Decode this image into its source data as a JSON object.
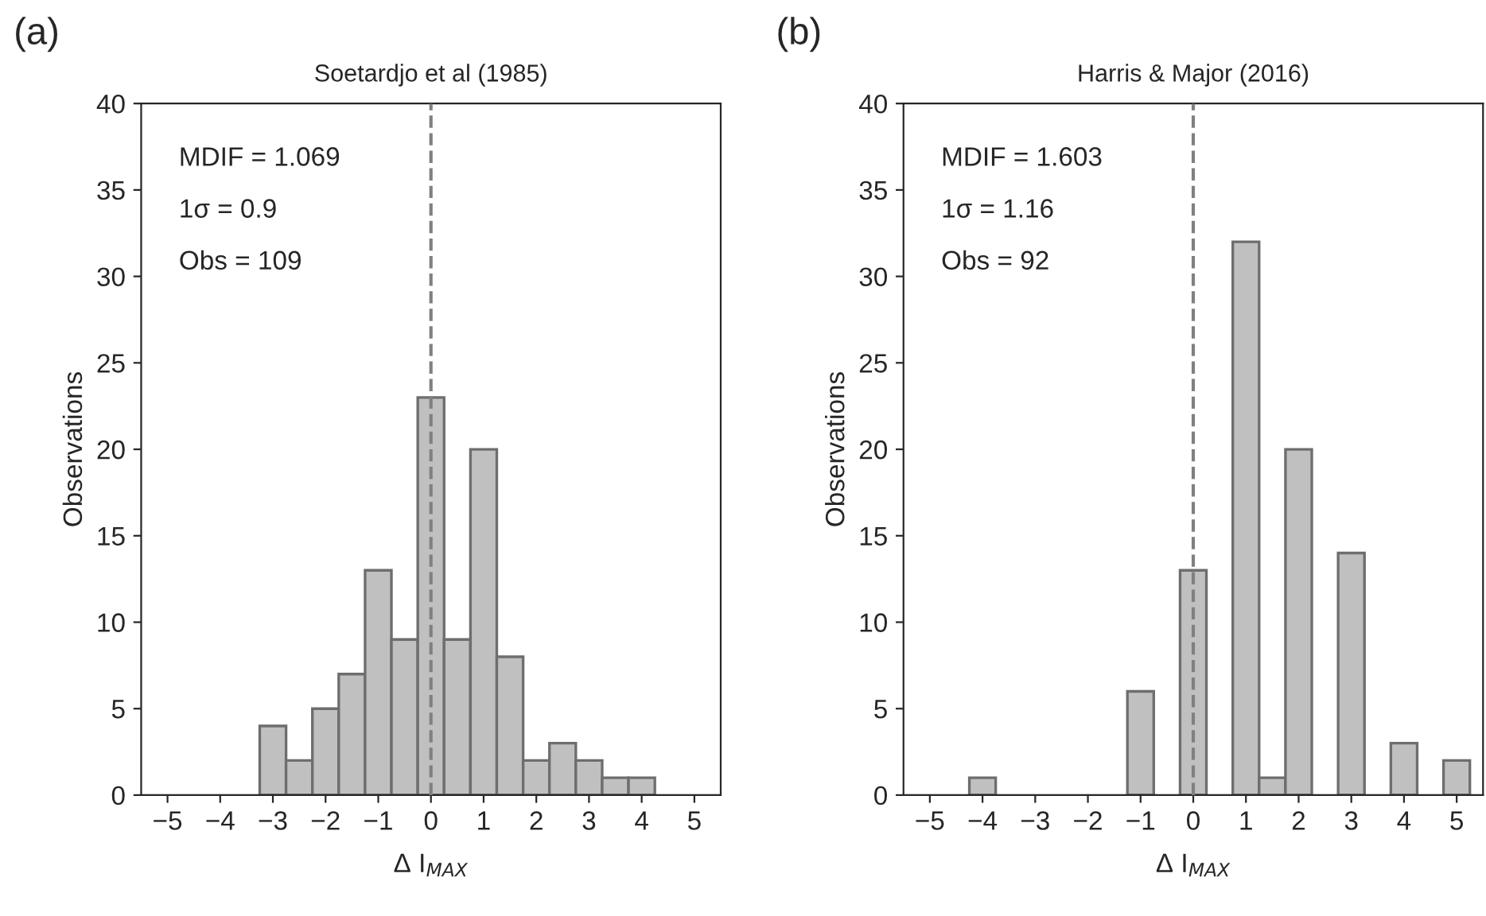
{
  "chart_data": [
    {
      "type": "histogram",
      "title": "Soetardjo et al (1985)",
      "xlabel": "Δ I$_{MAX}$",
      "ylabel": "Observations",
      "bins": [
        -3.25,
        -2.75,
        -2.25,
        -1.75,
        -1.25,
        -0.75,
        -0.25,
        0.25,
        0.75,
        1.25,
        1.75,
        2.25,
        2.75,
        3.25,
        3.75,
        4.25
      ],
      "values": [
        4,
        2,
        5,
        7,
        13,
        9,
        23,
        9,
        20,
        8,
        2,
        3,
        2,
        1,
        1
      ],
      "color": "#c0c0c0",
      "xlim": [
        -5.5,
        5.5
      ],
      "xticks": [
        {
          "value": -5,
          "label": "−5"
        },
        {
          "value": -4,
          "label": "−4"
        },
        {
          "value": -3,
          "label": "−3"
        },
        {
          "value": -2,
          "label": "−2"
        },
        {
          "value": -1,
          "label": "−1"
        },
        0,
        1,
        2,
        3,
        4,
        5
      ],
      "ylim": [
        0,
        40
      ],
      "yticks": [
        0,
        5,
        10,
        15,
        20,
        25,
        30,
        35,
        40
      ],
      "ref_lines": [
        {
          "axis": "x",
          "value": 0,
          "color": "#808080",
          "line_style": "dashed"
        }
      ],
      "annotations": [
        "(a)",
        "MDIF = 1.069",
        "1σ = 0.9",
        "Obs = 109"
      ]
    },
    {
      "type": "histogram",
      "title": "Harris & Major (2016)",
      "xlabel": "Δ I$_{MAX}$",
      "ylabel": "Observations",
      "bins": [
        -4.25,
        -3.75,
        -3.25,
        -2.75,
        -2.25,
        -1.75,
        -1.25,
        -0.75,
        -0.25,
        0.25,
        0.75,
        1.25,
        1.75,
        2.25,
        2.75,
        3.25,
        3.75,
        4.25,
        4.75,
        5.25
      ],
      "values": [
        1,
        0,
        0,
        0,
        0,
        0,
        6,
        0,
        13,
        0,
        32,
        1,
        20,
        0,
        14,
        0,
        3,
        0,
        2
      ],
      "color": "#c0c0c0",
      "xlim": [
        -5.5,
        5.5
      ],
      "xticks": [
        {
          "value": -5,
          "label": "−5"
        },
        {
          "value": -4,
          "label": "−4"
        },
        {
          "value": -3,
          "label": "−3"
        },
        {
          "value": -2,
          "label": "−2"
        },
        {
          "value": -1,
          "label": "−1"
        },
        0,
        1,
        2,
        3,
        4,
        5
      ],
      "ylim": [
        0,
        40
      ],
      "yticks": [
        0,
        5,
        10,
        15,
        20,
        25,
        30,
        35,
        40
      ],
      "ref_lines": [
        {
          "axis": "x",
          "value": 0,
          "color": "#808080",
          "line_style": "dashed"
        }
      ],
      "annotations": [
        "(b)",
        "MDIF = 1.603",
        "1σ = 1.16",
        "Obs = 92"
      ]
    }
  ]
}
